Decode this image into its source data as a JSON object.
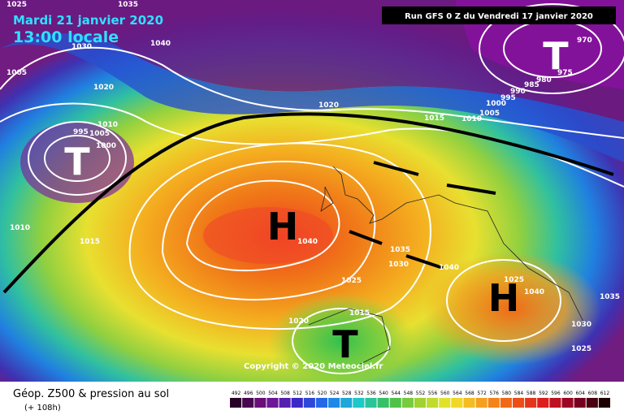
{
  "header": {
    "date": "Mardi 21 janvier 2020",
    "time": "13:00 locale",
    "run": "Run GFS 0 Z du Vendredi 17 janvier 2020"
  },
  "systems": [
    "H",
    "H",
    "T",
    "T",
    "T"
  ],
  "isobar_labels": [
    "1025",
    "1035",
    "1040",
    "1030",
    "1005",
    "1020",
    "1010",
    "995",
    "1005",
    "1000",
    "1010",
    "1015",
    "1020",
    "1015",
    "1010",
    "1005",
    "1000",
    "995",
    "990",
    "985",
    "980",
    "975",
    "970",
    "1040",
    "1035",
    "1030",
    "1040",
    "1040",
    "1035",
    "1030",
    "1025",
    "1025",
    "1015",
    "1020",
    "1025"
  ],
  "copyright": "Copyright © 2020 Meteociel.fr",
  "legend": {
    "title": "Géop. Z500 & pression au sol",
    "lead": "(+ 108h)",
    "scale": [
      "492",
      "496",
      "500",
      "504",
      "508",
      "512",
      "516",
      "520",
      "524",
      "528",
      "532",
      "536",
      "540",
      "544",
      "548",
      "552",
      "556",
      "560",
      "564",
      "568",
      "572",
      "576",
      "580",
      "584",
      "588",
      "592",
      "596",
      "600",
      "604",
      "608",
      "612"
    ]
  }
}
